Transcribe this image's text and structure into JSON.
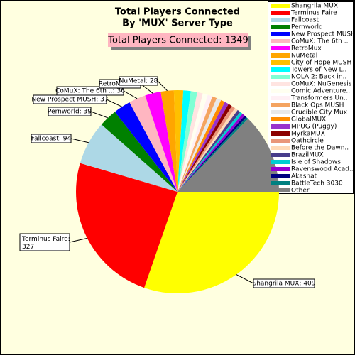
{
  "chart_data": {
    "type": "pie",
    "title": "Total Players Connected",
    "subtitle": "By 'MUX' Server Type",
    "total_label": "Total Players Connected: 1349",
    "categories": [
      "Shangrila MUX",
      "Terminus Faire",
      "Fallcoast",
      "Pernworld",
      "New Prospect MUSH",
      "CoMuX: The 6th ..",
      "RetroMux",
      "NuMetal",
      "City of Hope MUSH",
      "Towers of New L..",
      "NOLA 2: Back in..",
      "CoMuX: NuGenesis",
      "Comic Adventure..",
      "Transformers Un..",
      "Black Ops MUSH",
      "Crucible City Mux",
      "GlobalMUX",
      "MPUG (Puggy)",
      "MyrkaMUX",
      "Oathcircle",
      "Before the Dawn..",
      "BrazilMUX",
      "Isle of Shadows",
      "Ravenswood Acad..",
      "Akashat",
      "BattleTech 3030",
      "Other"
    ],
    "values": [
      409,
      327,
      94,
      39,
      37,
      36,
      34,
      28,
      20,
      16,
      14,
      12,
      11,
      10,
      10,
      10,
      9,
      9,
      8,
      8,
      7,
      7,
      6,
      6,
      5,
      5,
      172
    ],
    "value_labels": [
      "Shangrila MUX: 409",
      "Terminus Faire:\n327",
      "Fallcoast: 94",
      "Pernworld: 39",
      "New Prospect MUSH: 37",
      "CoMuX: The 6th ..: 36",
      "RetroMux: 34",
      "NuMetal: 28",
      null,
      null,
      null,
      null,
      null,
      null,
      null,
      null,
      null,
      null,
      null,
      null,
      null,
      null,
      null,
      null,
      null,
      null,
      null
    ],
    "colors": [
      "#ffff00",
      "#ff0000",
      "#add8e6",
      "#008000",
      "#0000ff",
      "#ffb6c1",
      "#ff00ff",
      "#ffa500",
      "#ffc000",
      "#00ffff",
      "#7fffd4",
      "#ffe4e1",
      "#fffff0",
      "#fff0f5",
      "#f4a460",
      "#e8e8e8",
      "#ff8c00",
      "#9932cc",
      "#8b0000",
      "#e9967a",
      "#ffdab9",
      "#483d8b",
      "#00ced1",
      "#9400d3",
      "#000080",
      "#008080",
      "#808080"
    ]
  }
}
